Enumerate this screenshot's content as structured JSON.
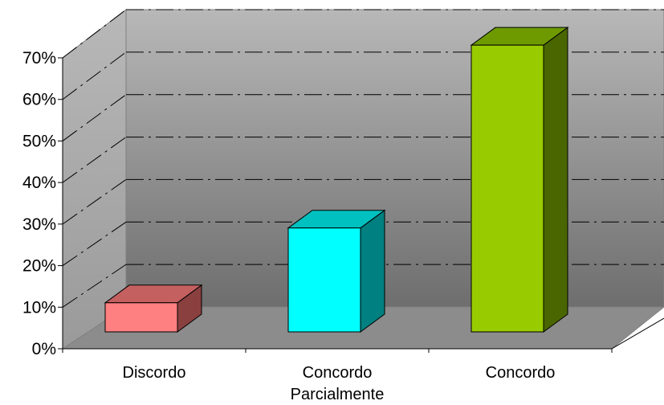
{
  "chart_data": {
    "type": "bar",
    "style": "3d-column",
    "categories": [
      [
        "Discordo"
      ],
      [
        "Concordo",
        "Parcialmente"
      ],
      [
        "Concordo"
      ]
    ],
    "values": [
      7,
      25,
      69
    ],
    "unit": "%",
    "ylim": [
      0,
      70
    ],
    "yticks": [
      "0%",
      "10%",
      "20%",
      "30%",
      "40%",
      "50%",
      "60%",
      "70%"
    ],
    "grid": "dash-dot horizontal",
    "legend": "none",
    "title": "",
    "xlabel": "",
    "ylabel": "",
    "colors": {
      "bars": [
        {
          "front": "#ff8080",
          "top": "#c46060",
          "side": "#8b4040"
        },
        {
          "front": "#00ffff",
          "top": "#00c0c0",
          "side": "#008080"
        },
        {
          "front": "#99cc00",
          "top": "#6e9a00",
          "side": "#4a6600"
        }
      ],
      "back_wall_top": "#b8b8b8",
      "back_wall_bottom": "#6e6e6e",
      "side_wall": "#9a9a9a",
      "floor": "#8c8c8c",
      "gridline": "#000000"
    }
  }
}
